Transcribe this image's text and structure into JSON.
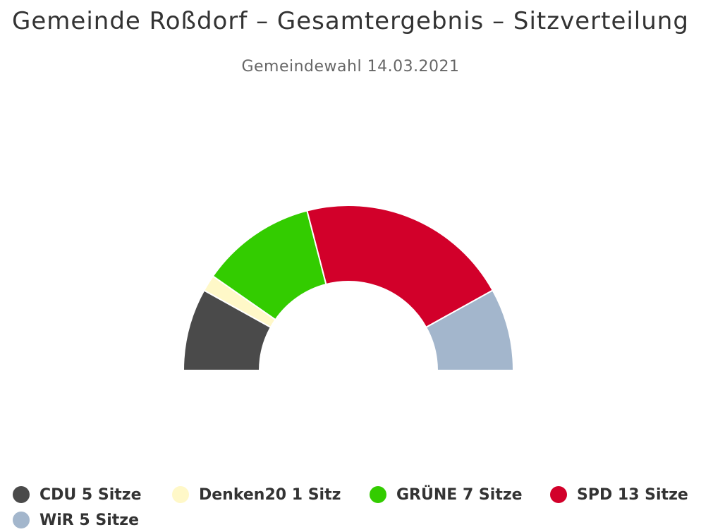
{
  "title": "Gemeinde Roßdorf – Gesamtergebnis – Sitzverteilung",
  "subtitle": "Gemeindewahl 14.03.2021",
  "chart_data": {
    "type": "pie",
    "variant": "semi-circle parliament / item chart",
    "title": "Gemeinde Roßdorf – Gesamtergebnis – Sitzverteilung",
    "subtitle": "Gemeindewahl 14.03.2021",
    "legend_position": "bottom",
    "series": [
      {
        "name": "CDU",
        "value": 5,
        "color": "#4a4a4a",
        "legend_label": "CDU 5 Sitze"
      },
      {
        "name": "Denken20",
        "value": 1,
        "color": "#fff8c8",
        "legend_label": "Denken20 1 Sitz"
      },
      {
        "name": "GRÜNE",
        "value": 7,
        "color": "#33cc00",
        "legend_label": "GRÜNE 7 Sitze"
      },
      {
        "name": "SPD",
        "value": 13,
        "color": "#d2002a",
        "legend_label": "SPD 13 Sitze"
      },
      {
        "name": "WiR",
        "value": 5,
        "color": "#a3b6cc",
        "legend_label": "WiR 5 Sitze"
      }
    ]
  }
}
